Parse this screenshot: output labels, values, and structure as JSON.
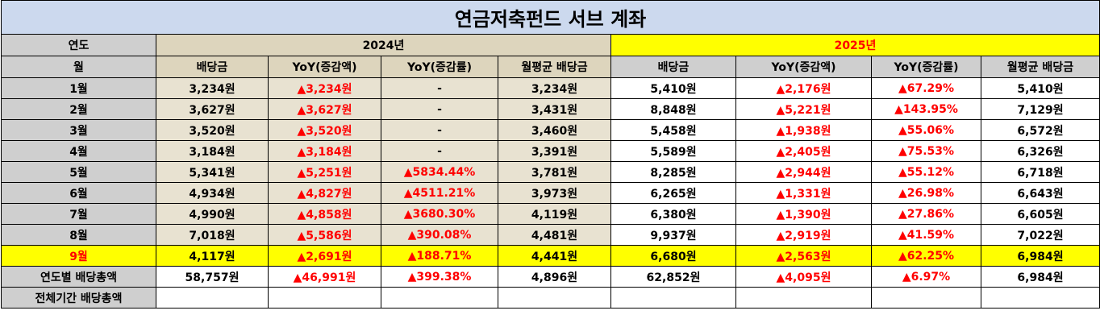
{
  "title": "연금저축펀드 서브 계좌",
  "year_label": "연도",
  "month_label": "월",
  "years": [
    "2024년",
    "2025년"
  ],
  "columns": [
    "배당금",
    "YoY(증감액)",
    "YoY(증감률)",
    "월평균 배당금"
  ],
  "rows": [
    {
      "month": "1월",
      "y2024": [
        "3,234원",
        "▲3,234원",
        "-",
        "3,234원"
      ],
      "y2025": [
        "5,410원",
        "▲2,176원",
        "▲67.29%",
        "5,410원"
      ]
    },
    {
      "month": "2월",
      "y2024": [
        "3,627원",
        "▲3,627원",
        "-",
        "3,431원"
      ],
      "y2025": [
        "8,848원",
        "▲5,221원",
        "▲143.95%",
        "7,129원"
      ]
    },
    {
      "month": "3월",
      "y2024": [
        "3,520원",
        "▲3,520원",
        "-",
        "3,460원"
      ],
      "y2025": [
        "5,458원",
        "▲1,938원",
        "▲55.06%",
        "6,572원"
      ]
    },
    {
      "month": "4월",
      "y2024": [
        "3,184원",
        "▲3,184원",
        "-",
        "3,391원"
      ],
      "y2025": [
        "5,589원",
        "▲2,405원",
        "▲75.53%",
        "6,326원"
      ]
    },
    {
      "month": "5월",
      "y2024": [
        "5,341원",
        "▲5,251원",
        "▲5834.44%",
        "3,781원"
      ],
      "y2025": [
        "8,285원",
        "▲2,944원",
        "▲55.12%",
        "6,718원"
      ]
    },
    {
      "month": "6월",
      "y2024": [
        "4,934원",
        "▲4,827원",
        "▲4511.21%",
        "3,973원"
      ],
      "y2025": [
        "6,265원",
        "▲1,331원",
        "▲26.98%",
        "6,643원"
      ]
    },
    {
      "month": "7월",
      "y2024": [
        "4,990원",
        "▲4,858원",
        "▲3680.30%",
        "4,119원"
      ],
      "y2025": [
        "6,380원",
        "▲1,390원",
        "▲27.86%",
        "6,605원"
      ]
    },
    {
      "month": "8월",
      "y2024": [
        "7,018원",
        "▲5,586원",
        "▲390.08%",
        "4,481원"
      ],
      "y2025": [
        "9,937원",
        "▲2,919원",
        "▲41.59%",
        "7,022원"
      ]
    },
    {
      "month": "9월",
      "y2024": [
        "4,117원",
        "▲2,691원",
        "▲188.71%",
        "4,441원"
      ],
      "y2025": [
        "6,680원",
        "▲2,563원",
        "▲62.25%",
        "6,984원"
      ]
    }
  ],
  "selected_row": 8,
  "totals": {
    "label": "연도별 배당총액",
    "y2024": [
      "58,757원",
      "▲46,991원",
      "▲399.38%",
      "4,896원"
    ],
    "y2025": [
      "62,852원",
      "▲4,095원",
      "▲6.97%",
      "6,984원"
    ]
  },
  "grand_total_label": "전체기간 배당총액",
  "colors": {
    "title_bg": "#ccd9ee",
    "label_bg": "#cfcfcf",
    "y2024_bg": "#ddd5bd",
    "y2024_cell_bg": "#e8e2d1",
    "y2025_header_bg": "#ffff00",
    "highlight_bg": "#ffff00",
    "increase_text": "#ff0000"
  }
}
